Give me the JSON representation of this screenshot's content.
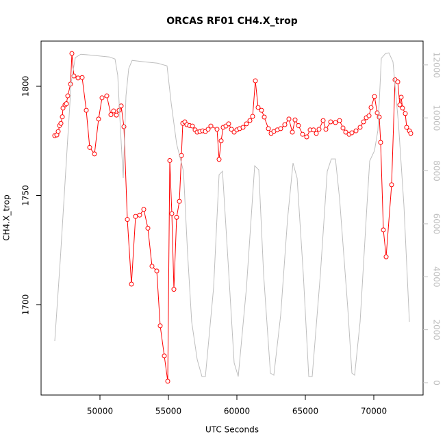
{
  "chart_data": {
    "type": "line",
    "title": "ORCAS RF01 CH4.X_trop",
    "x_label": "UTC Seconds",
    "y_label": "CH4.X_trop",
    "xlim": [
      45700,
      73600
    ],
    "xticks": [
      50000,
      55000,
      60000,
      65000,
      70000
    ],
    "ylim": [
      1658.6,
      1820.7
    ],
    "yticks": [
      1700,
      1750,
      1800
    ],
    "y2lim": [
      -465,
      12900
    ],
    "y2ticks": [
      0,
      2000,
      4000,
      6000,
      8000,
      10000,
      12000
    ],
    "series": [
      {
        "color": "#ff0000",
        "markers": true,
        "x": [
          46700,
          46850,
          46950,
          47050,
          47150,
          47250,
          47300,
          47450,
          47550,
          47650,
          47850,
          47950,
          48100,
          48400,
          48700,
          49000,
          49250,
          49600,
          49900,
          50150,
          50500,
          50800,
          51000,
          51200,
          51400,
          51550,
          51750,
          52000,
          52300,
          52600,
          52900,
          53200,
          53500,
          53800,
          54150,
          54400,
          54700,
          54950,
          55100,
          55250,
          55400,
          55600,
          55800,
          55950,
          56050,
          56200,
          56350,
          56550,
          56750,
          56950,
          57100,
          57300,
          57500,
          57700,
          57900,
          58100,
          58550,
          58700,
          58850,
          59000,
          59200,
          59400,
          59600,
          59800,
          60000,
          60200,
          60450,
          60700,
          60950,
          61150,
          61350,
          61550,
          61800,
          62000,
          62300,
          62500,
          62700,
          62950,
          63200,
          63500,
          63800,
          64050,
          64250,
          64500,
          64800,
          65100,
          65350,
          65600,
          65800,
          66000,
          66300,
          66500,
          66850,
          67200,
          67500,
          67750,
          67950,
          68200,
          68400,
          68700,
          69000,
          69250,
          69450,
          69650,
          69800,
          70050,
          70250,
          70400,
          70500,
          70700,
          70900,
          71300,
          71550,
          71750,
          71900,
          72000,
          72100,
          72300,
          72400,
          72600,
          72700
        ],
        "values": [
          1777.4,
          1777.7,
          1779.3,
          1782,
          1783,
          1786,
          1790,
          1791.5,
          1792,
          1795.6,
          1801,
          1815,
          1804.7,
          1803.8,
          1804,
          1789,
          1772,
          1769,
          1785,
          1794.7,
          1795.6,
          1787,
          1788.7,
          1786.8,
          1789,
          1791,
          1781.5,
          1739,
          1709.4,
          1740.4,
          1741,
          1743.6,
          1735,
          1717.6,
          1715.4,
          1690.3,
          1676.5,
          1664.9,
          1766,
          1741.7,
          1707,
          1740,
          1747.3,
          1768.3,
          1783,
          1783.7,
          1782.4,
          1782,
          1781.8,
          1780,
          1779,
          1779.3,
          1779.6,
          1779.3,
          1780.3,
          1781.8,
          1780.3,
          1766.5,
          1775,
          1781.2,
          1781.8,
          1782.8,
          1780.3,
          1779,
          1780,
          1780.6,
          1781.2,
          1782.8,
          1784.3,
          1786.2,
          1802.5,
          1790.3,
          1789,
          1785.9,
          1780.6,
          1778.4,
          1779.3,
          1780,
          1780.6,
          1782.4,
          1785,
          1779,
          1784.6,
          1782,
          1778,
          1776.8,
          1780,
          1780,
          1778.4,
          1780.3,
          1784.3,
          1780.3,
          1783.7,
          1783.4,
          1784.3,
          1780.9,
          1779,
          1778,
          1778.7,
          1779.6,
          1781.2,
          1783.7,
          1785.6,
          1786.5,
          1790.3,
          1795.3,
          1787.8,
          1785.9,
          1774.3,
          1734.2,
          1721.9,
          1754.9,
          1803,
          1802,
          1791.5,
          1795,
          1790,
          1787.5,
          1781.2,
          1779.6,
          1778.4
        ]
      },
      {
        "color": "#bebebe",
        "axis": "y2",
        "markers": false,
        "x": [
          46700,
          47100,
          47500,
          47900,
          48200,
          48600,
          49200,
          50700,
          51100,
          51300,
          51500,
          51700,
          51900,
          52100,
          52350,
          53200,
          54200,
          54900,
          55200,
          55600,
          56100,
          56400,
          56700,
          57100,
          57450,
          57700,
          58300,
          58700,
          58950,
          59350,
          59800,
          60100,
          60700,
          61300,
          61600,
          61950,
          62450,
          62700,
          63200,
          63700,
          64100,
          64400,
          64850,
          65250,
          65500,
          66100,
          66600,
          66900,
          67200,
          67500,
          68100,
          68400,
          68600,
          69000,
          69500,
          69700,
          70050,
          70300,
          70550,
          70850,
          71100,
          71400,
          71800,
          72200,
          72600
        ],
        "values": [
          1576,
          4625,
          7984,
          11343,
          12274,
          12403,
          12377,
          12300,
          12222,
          11602,
          9535,
          7726,
          10827,
          11860,
          12171,
          12119,
          12067,
          11964,
          10568,
          9018,
          7984,
          4884,
          2300,
          879,
          233,
          233,
          3592,
          7855,
          7984,
          4625,
          749,
          233,
          3592,
          8191,
          8036,
          4108,
          362,
          284,
          2558,
          6176,
          8295,
          7726,
          4108,
          233,
          233,
          4108,
          7984,
          8450,
          8450,
          6951,
          2817,
          362,
          284,
          2300,
          6693,
          8372,
          8760,
          9535,
          12248,
          12429,
          12455,
          12119,
          9793,
          6693,
          2300
        ]
      }
    ]
  }
}
